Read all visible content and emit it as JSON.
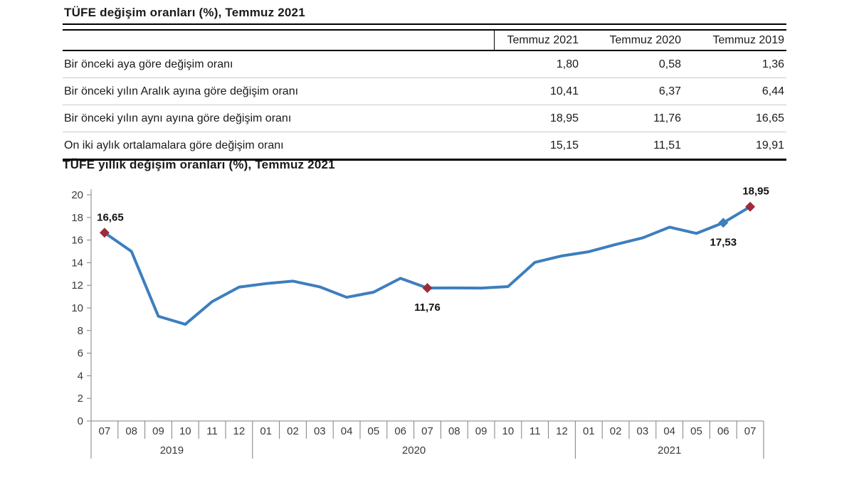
{
  "table": {
    "title": "TÜFE değişim oranları (%), Temmuz 2021",
    "columns": [
      "Temmuz 2021",
      "Temmuz 2020",
      "Temmuz 2019"
    ],
    "rows": [
      {
        "label": "Bir önceki aya göre değişim oranı",
        "values": [
          "1,80",
          "0,58",
          "1,36"
        ]
      },
      {
        "label": "Bir önceki yılın Aralık ayına göre değişim oranı",
        "values": [
          "10,41",
          "6,37",
          "6,44"
        ]
      },
      {
        "label": "Bir önceki yılın aynı ayına göre değişim oranı",
        "values": [
          "18,95",
          "11,76",
          "16,65"
        ]
      },
      {
        "label": "On iki aylık ortalamalara göre değişim oranı",
        "values": [
          "15,15",
          "11,51",
          "19,91"
        ]
      }
    ]
  },
  "chart_data": {
    "type": "line",
    "title": "TÜFE yıllık değişim oranları (%), Temmuz 2021",
    "x": [
      "07",
      "08",
      "09",
      "10",
      "11",
      "12",
      "01",
      "02",
      "03",
      "04",
      "05",
      "06",
      "07",
      "08",
      "09",
      "10",
      "11",
      "12",
      "01",
      "02",
      "03",
      "04",
      "05",
      "06",
      "07"
    ],
    "year_groups": [
      {
        "label": "2019",
        "count": 6
      },
      {
        "label": "2020",
        "count": 12
      },
      {
        "label": "2021",
        "count": 7
      }
    ],
    "values": [
      16.65,
      15.0,
      9.26,
      8.55,
      10.56,
      11.84,
      12.15,
      12.37,
      11.86,
      10.94,
      11.39,
      12.62,
      11.76,
      11.77,
      11.75,
      11.89,
      14.03,
      14.6,
      14.97,
      15.61,
      16.19,
      17.14,
      16.59,
      17.53,
      18.95
    ],
    "ylim": [
      0,
      20
    ],
    "ytick_step": 2,
    "grid": false,
    "legend": "none",
    "line_color": "#3d7ebf",
    "marker_color": "#9b2d38",
    "axis_color": "#808080",
    "label_color": "#3a3a3a",
    "annotations": [
      {
        "index": 0,
        "label": "16,65",
        "marker": "diamond",
        "color": "#9b2d38",
        "position": "above"
      },
      {
        "index": 12,
        "label": "11,76",
        "marker": "diamond",
        "color": "#9b2d38",
        "position": "below"
      },
      {
        "index": 23,
        "label": "17,53",
        "marker": "diamond",
        "color": "#3d7ebf",
        "position": "below"
      },
      {
        "index": 24,
        "label": "18,95",
        "marker": "diamond",
        "color": "#9b2d38",
        "position": "above"
      }
    ]
  }
}
